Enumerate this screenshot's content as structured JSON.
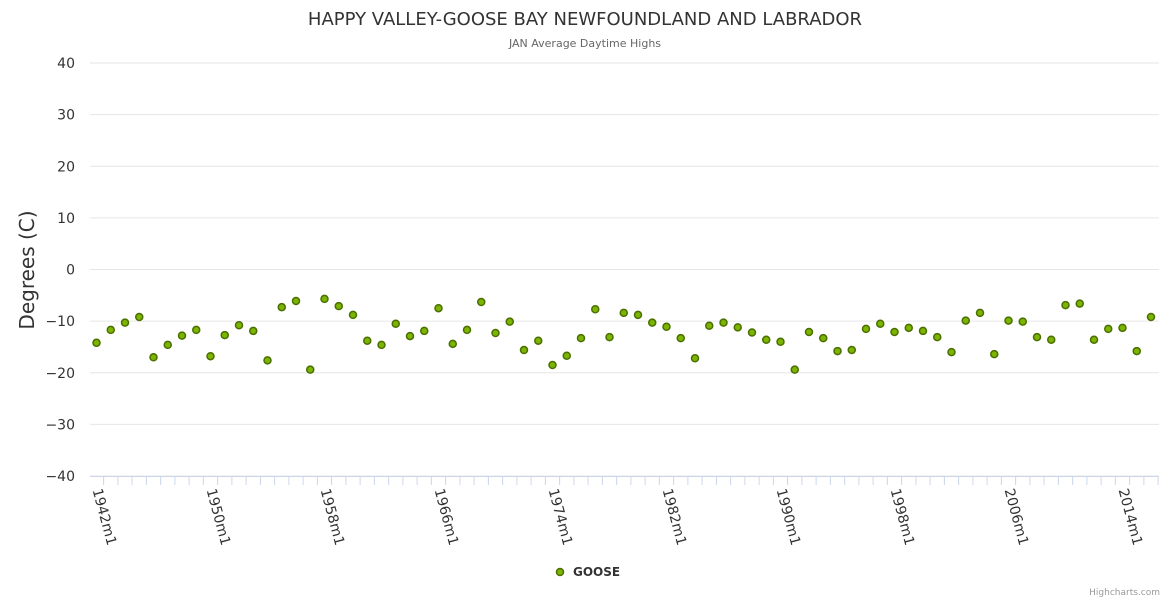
{
  "chart_data": {
    "type": "scatter",
    "title": "HAPPY VALLEY-GOOSE BAY NEWFOUNDLAND AND LABRADOR",
    "subtitle": "JAN Average Daytime Highs",
    "xlabel": "",
    "ylabel": "Degrees (C)",
    "ylim": [
      -40,
      40
    ],
    "yticks": [
      40,
      30,
      20,
      10,
      0,
      -10,
      -20,
      -30,
      -40
    ],
    "x_categories_start_year": 1942,
    "x_categories_end_year": 2016,
    "xtick_labels": [
      "1942m1",
      "1950m1",
      "1958m1",
      "1966m1",
      "1974m1",
      "1982m1",
      "1990m1",
      "1998m1",
      "2006m1",
      "2014m1"
    ],
    "grid": true,
    "legend": "bottom-center",
    "series": [
      {
        "name": "GOOSE",
        "color": "#7cb500",
        "x": [
          1942,
          1943,
          1944,
          1945,
          1946,
          1947,
          1948,
          1949,
          1950,
          1951,
          1952,
          1953,
          1954,
          1955,
          1956,
          1957,
          1958,
          1959,
          1960,
          1961,
          1962,
          1963,
          1964,
          1965,
          1966,
          1967,
          1968,
          1969,
          1970,
          1971,
          1972,
          1973,
          1974,
          1975,
          1976,
          1977,
          1978,
          1979,
          1980,
          1981,
          1982,
          1983,
          1984,
          1985,
          1986,
          1987,
          1988,
          1989,
          1990,
          1991,
          1992,
          1993,
          1994,
          1995,
          1996,
          1997,
          1998,
          1999,
          2000,
          2001,
          2002,
          2003,
          2004,
          2005,
          2006,
          2007,
          2008,
          2009,
          2010,
          2011,
          2012,
          2013,
          2014,
          2015,
          2016
        ],
        "values": [
          -14.2,
          -11.7,
          -10.3,
          -9.2,
          -17.0,
          -14.6,
          -12.8,
          -11.7,
          -16.8,
          -12.7,
          -10.8,
          -11.9,
          -17.6,
          -7.3,
          -6.1,
          -19.4,
          -5.7,
          -7.1,
          -8.8,
          -13.8,
          -14.6,
          -10.5,
          -12.9,
          -11.9,
          -7.5,
          -14.4,
          -11.7,
          -6.3,
          -12.3,
          -10.1,
          -15.6,
          -13.8,
          -18.5,
          -16.7,
          -13.3,
          -7.7,
          -13.1,
          -8.4,
          -8.8,
          -10.3,
          -11.1,
          -13.3,
          -17.2,
          -10.9,
          -10.3,
          -11.2,
          -12.2,
          -13.6,
          -14.0,
          -19.4,
          -12.1,
          -13.3,
          -15.8,
          -15.6,
          -11.5,
          -10.5,
          -12.1,
          -11.3,
          -11.9,
          -13.1,
          -16.0,
          -9.9,
          -8.4,
          -16.4,
          -9.9,
          -10.1,
          -13.1,
          -13.6,
          -6.9,
          -6.6,
          -13.6,
          -11.5,
          -11.3,
          -15.8,
          -9.2
        ]
      }
    ]
  },
  "credits": "Highcharts.com"
}
